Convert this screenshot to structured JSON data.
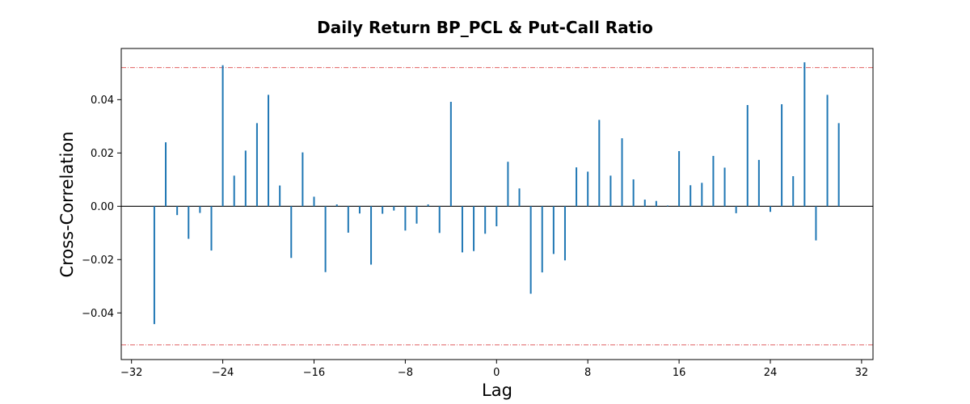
{
  "chart_data": {
    "type": "bar",
    "title": "Daily Return BP_PCL & Put-Call Ratio",
    "xlabel": "Lag",
    "ylabel": "Cross-Correlation",
    "xlim": [
      -32.9,
      33.0
    ],
    "ylim": [
      -0.0575,
      0.0592
    ],
    "xticks": [
      -32,
      -24,
      -16,
      -8,
      0,
      8,
      16,
      24,
      32
    ],
    "xtick_labels": [
      "−32",
      "−24",
      "−16",
      "−8",
      "0",
      "8",
      "16",
      "24",
      "32"
    ],
    "yticks": [
      -0.04,
      -0.02,
      0.0,
      0.02,
      0.04
    ],
    "ytick_labels": [
      "−0.04",
      "−0.02",
      "0.00",
      "0.02",
      "0.04"
    ],
    "confidence_band": 0.052,
    "grid": false,
    "lags": [
      -30,
      -29,
      -28,
      -27,
      -26,
      -25,
      -24,
      -23,
      -22,
      -21,
      -20,
      -19,
      -18,
      -17,
      -16,
      -15,
      -14,
      -13,
      -12,
      -11,
      -10,
      -9,
      -8,
      -7,
      -6,
      -5,
      -4,
      -3,
      -2,
      -1,
      0,
      1,
      2,
      3,
      4,
      5,
      6,
      7,
      8,
      9,
      10,
      11,
      12,
      13,
      14,
      15,
      16,
      17,
      18,
      19,
      20,
      21,
      22,
      23,
      24,
      25,
      26,
      27,
      28,
      29,
      30
    ],
    "values": [
      -0.0442,
      0.024,
      -0.0033,
      -0.0122,
      -0.0025,
      -0.0166,
      0.0529,
      0.0115,
      0.0209,
      0.0312,
      0.0418,
      0.0078,
      -0.0194,
      0.0202,
      0.0036,
      -0.0247,
      0.0007,
      -0.0099,
      -0.0027,
      -0.0219,
      -0.0028,
      -0.0016,
      -0.0091,
      -0.0065,
      0.0007,
      -0.01,
      0.0392,
      -0.0173,
      -0.0168,
      -0.0103,
      -0.0075,
      0.0167,
      0.0067,
      -0.0328,
      -0.0248,
      -0.0179,
      -0.0203,
      0.0146,
      0.013,
      0.0324,
      0.0115,
      0.0255,
      0.0101,
      0.0025,
      0.002,
      0.0003,
      0.0207,
      0.0079,
      0.0088,
      0.0189,
      0.0145,
      -0.0026,
      0.038,
      0.0174,
      -0.0021,
      0.0383,
      0.0113,
      0.054,
      -0.0128,
      0.0418,
      0.0312
    ],
    "colors": {
      "bars": "#1f77b4",
      "confidence": "#d62728",
      "zero_line": "#000000"
    }
  }
}
